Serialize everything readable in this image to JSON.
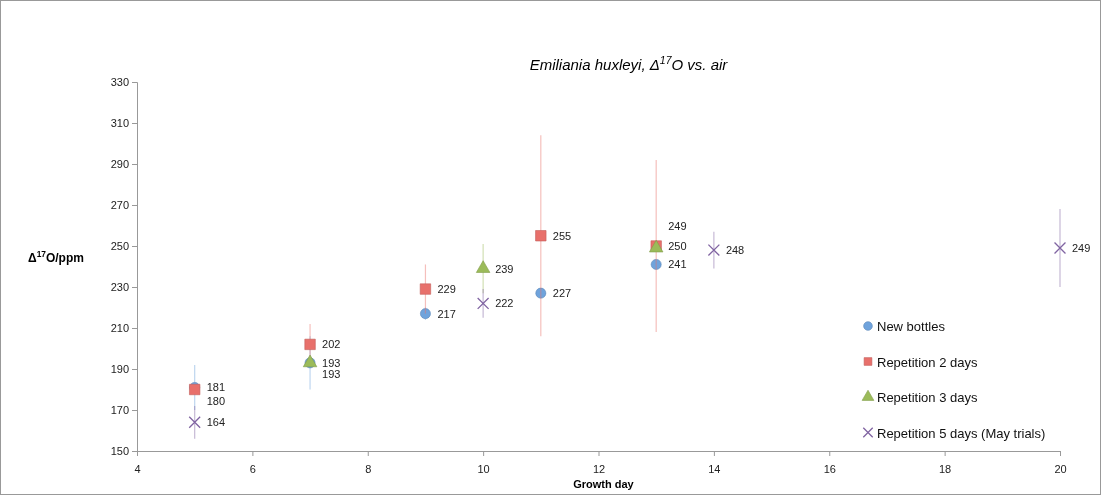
{
  "chart_data": {
    "type": "scatter",
    "title": "Emiliania huxleyi, Δ$^{17}$O vs. air",
    "xlabel": "Growth day",
    "ylabel": "Δ$^{17}$O/ppm",
    "xlim": [
      4,
      20
    ],
    "xticks": [
      4,
      6,
      8,
      10,
      12,
      14,
      16,
      18,
      20
    ],
    "ylim": [
      150,
      330
    ],
    "yticks": [
      150,
      170,
      190,
      210,
      230,
      250,
      270,
      290,
      310,
      330
    ],
    "grid": false,
    "legend": "bottom right",
    "data_labels": true,
    "series": [
      {
        "name": "New bottles",
        "color": "#6fa3dc",
        "marker": "circle",
        "x": [
          5,
          7,
          9,
          11,
          13
        ],
        "values": [
          181,
          193,
          217,
          227,
          241
        ],
        "errors": [
          11,
          13,
          3,
          null,
          null
        ]
      },
      {
        "name": "Repetition 2 days",
        "color": "#e8706b",
        "marker": "square",
        "x": [
          5,
          7,
          9,
          11,
          13
        ],
        "values": [
          180,
          202,
          229,
          255,
          250
        ],
        "errors": [
          null,
          10,
          12,
          49,
          42
        ]
      },
      {
        "name": "Repetition 3 days",
        "color": "#9bbb59",
        "marker": "triangle",
        "x": [
          7,
          10,
          13
        ],
        "values": [
          193,
          239,
          249
        ],
        "errors": [
          null,
          12,
          null
        ]
      },
      {
        "name": "Repetition 5 days (May trials)",
        "color": "#8064a2",
        "marker": "cross",
        "x": [
          5,
          10,
          14,
          20
        ],
        "values": [
          164,
          222,
          248,
          249
        ],
        "errors": [
          8,
          7,
          9,
          19
        ]
      }
    ]
  }
}
